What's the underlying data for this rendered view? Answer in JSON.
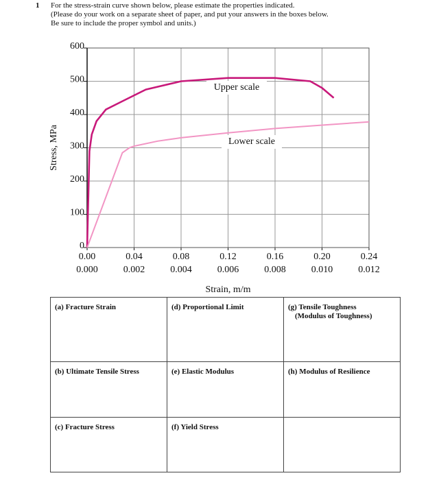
{
  "question": {
    "number": "1",
    "lines": [
      "For the stress-strain curve shown below, please estimate the properties indicated.",
      "(Please do your work on a separate sheet of paper, and put your answers in the boxes below.",
      "Be sure to include the proper symbol and units.)"
    ]
  },
  "chart_data": {
    "type": "line",
    "ylabel": "Stress, MPa",
    "xlabel": "Strain, m/m",
    "ylim": [
      0,
      600
    ],
    "yticks": [
      0,
      100,
      200,
      300,
      400,
      500,
      600
    ],
    "xlim": [
      0,
      0.24
    ],
    "xticks": [
      {
        "value": 0,
        "label": "0.00"
      },
      {
        "value": 0.04,
        "label": "0.04"
      },
      {
        "value": 0.08,
        "label": "0.08"
      },
      {
        "value": 0.12,
        "label": "0.12"
      },
      {
        "value": 0.16,
        "label": "0.16"
      },
      {
        "value": 0.2,
        "label": "0.20"
      },
      {
        "value": 0.24,
        "label": "0.24"
      }
    ],
    "x2lim": [
      0,
      0.012
    ],
    "x2ticks": [
      {
        "value": 0,
        "label": "0.000"
      },
      {
        "value": 0.002,
        "label": "0.002"
      },
      {
        "value": 0.004,
        "label": "0.004"
      },
      {
        "value": 0.006,
        "label": "0.006"
      },
      {
        "value": 0.008,
        "label": "0.008"
      },
      {
        "value": 0.01,
        "label": "0.010"
      },
      {
        "value": 0.012,
        "label": "0.012"
      }
    ],
    "grid": true,
    "series": [
      {
        "name": "Upper scale",
        "color": "#c8197a",
        "x": [
          0,
          0.002,
          0.004,
          0.008,
          0.016,
          0.03,
          0.05,
          0.08,
          0.12,
          0.16,
          0.19,
          0.2,
          0.21
        ],
        "values": [
          0,
          290,
          340,
          380,
          415,
          440,
          475,
          500,
          510,
          510,
          500,
          480,
          450
        ]
      },
      {
        "name": "Lower scale",
        "color": "#f295c4",
        "axis": "x2",
        "x": [
          0,
          0.0015,
          0.0018,
          0.002,
          0.003,
          0.004,
          0.006,
          0.008,
          0.01,
          0.012
        ],
        "values": [
          0,
          285,
          300,
          305,
          320,
          330,
          345,
          358,
          368,
          378
        ]
      }
    ]
  },
  "table": {
    "rows": [
      [
        [
          "(a) Fracture Strain"
        ],
        [
          "(d) Proportional Limit"
        ],
        [
          "(g) Tensile Toughness",
          "(Modulus of Toughness)"
        ]
      ],
      [
        [
          "(b) Ultimate Tensile Stress"
        ],
        [
          "(e) Elastic Modulus"
        ],
        [
          "(h) Modulus of Resilience"
        ]
      ],
      [
        [
          "(c) Fracture Stress"
        ],
        [
          "(f) Yield Stress"
        ]
      ]
    ]
  }
}
